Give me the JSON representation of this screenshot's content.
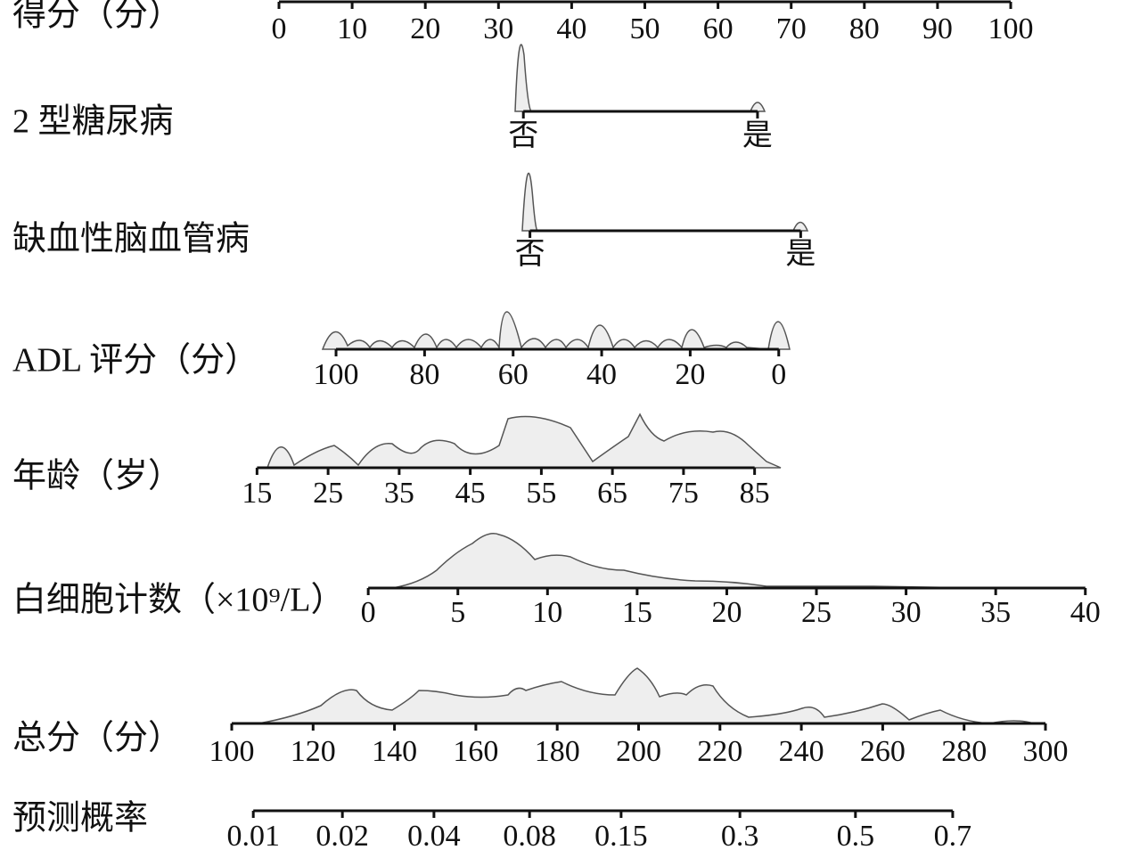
{
  "chart_data": {
    "type": "nomogram",
    "points_axis": {
      "label": "得分（分）",
      "lim": [
        0,
        100
      ],
      "ticks": [
        0,
        10,
        20,
        30,
        40,
        50,
        60,
        70,
        80,
        90,
        100
      ]
    },
    "variables": [
      {
        "label": "2 型糖尿病",
        "categories": [
          "否",
          "是"
        ],
        "points": [
          33.4,
          65.4
        ]
      },
      {
        "label": "缺血性脑血管病",
        "categories": [
          "否",
          "是"
        ],
        "points": [
          34.3,
          71.3
        ]
      },
      {
        "label": "ADL 评分（分）",
        "lim": [
          100,
          0
        ],
        "points_lim": [
          7.8,
          68.3
        ],
        "ticks": [
          100,
          80,
          60,
          40,
          20,
          0
        ]
      },
      {
        "label": "年龄（岁）",
        "lim": [
          15,
          85
        ],
        "points_lim": [
          -3.0,
          65.0
        ],
        "ticks": [
          15,
          25,
          35,
          45,
          55,
          65,
          75,
          85
        ]
      },
      {
        "label": "白细胞计数（×10⁹/L）",
        "lim": [
          0,
          40
        ],
        "points_lim": [
          12.2,
          110.2
        ],
        "ticks": [
          0,
          5,
          10,
          15,
          20,
          25,
          30,
          35,
          40
        ]
      }
    ],
    "total_axis": {
      "label": "总分（分）",
      "lim": [
        100,
        300
      ],
      "ticks": [
        100,
        120,
        140,
        160,
        180,
        200,
        220,
        240,
        260,
        280,
        300
      ]
    },
    "probability_axis": {
      "label": "预测概率",
      "ticks": [
        0.01,
        0.02,
        0.04,
        0.08,
        0.15,
        0.3,
        0.5,
        0.7
      ],
      "total_points": [
        105.3,
        127.2,
        149.7,
        173.2,
        195.7,
        224.9,
        253.3,
        277.2
      ]
    }
  }
}
